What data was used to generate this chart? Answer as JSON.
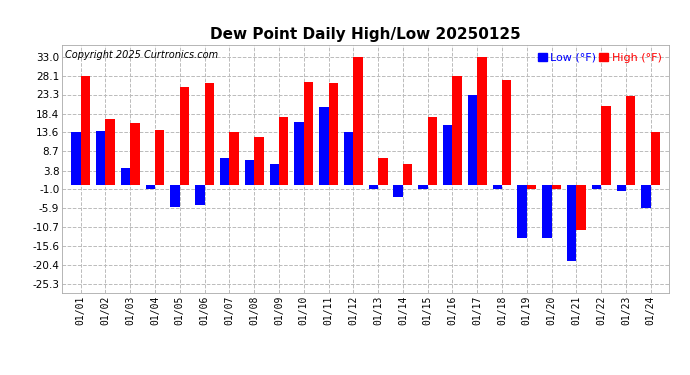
{
  "title": "Dew Point Daily High/Low 20250125",
  "copyright": "Copyright 2025 Curtronics.com",
  "legend_low": "Low (°F)",
  "legend_high": "High (°F)",
  "dates": [
    "01/01",
    "01/02",
    "01/03",
    "01/04",
    "01/05",
    "01/06",
    "01/07",
    "01/08",
    "01/09",
    "01/10",
    "01/11",
    "01/12",
    "01/13",
    "01/14",
    "01/15",
    "01/16",
    "01/17",
    "01/18",
    "01/19",
    "01/20",
    "01/21",
    "01/22",
    "01/23",
    "01/24"
  ],
  "high": [
    28.1,
    17.0,
    16.0,
    14.2,
    25.3,
    26.3,
    13.6,
    12.5,
    17.5,
    26.5,
    26.3,
    33.0,
    7.0,
    5.5,
    17.6,
    28.1,
    33.0,
    27.1,
    -1.0,
    -1.0,
    -11.5,
    20.3,
    23.0,
    13.6
  ],
  "low": [
    13.6,
    13.9,
    4.5,
    -1.0,
    -5.5,
    -5.0,
    7.0,
    6.5,
    5.5,
    16.3,
    20.0,
    13.6,
    -1.0,
    -3.0,
    -1.0,
    15.5,
    23.3,
    -1.0,
    -13.5,
    -13.5,
    -19.5,
    -1.0,
    -1.5,
    -5.9
  ],
  "high_color": "#ff0000",
  "low_color": "#0000ff",
  "background_color": "#ffffff",
  "grid_color": "#bbbbbb",
  "yticks": [
    33.0,
    28.1,
    23.3,
    18.4,
    13.6,
    8.7,
    3.8,
    -1.0,
    -5.9,
    -10.7,
    -15.6,
    -20.4,
    -25.3
  ],
  "ylim": [
    -27.5,
    36.0
  ],
  "bar_width": 0.38,
  "figwidth": 6.9,
  "figheight": 3.75,
  "dpi": 100
}
